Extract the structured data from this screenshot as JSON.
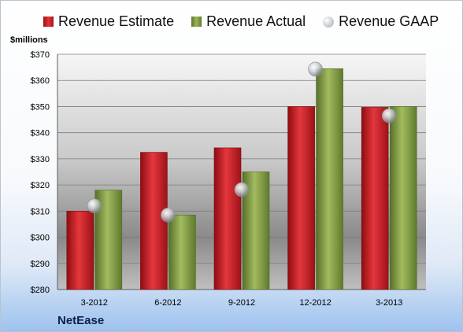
{
  "chart_data": {
    "type": "bar",
    "ylabel": "$millions",
    "company": "NetEase",
    "categories": [
      "3-2012",
      "6-2012",
      "9-2012",
      "12-2012",
      "3-2013"
    ],
    "ylim": [
      280,
      370
    ],
    "yticks": [
      280,
      290,
      300,
      310,
      320,
      330,
      340,
      350,
      360,
      370
    ],
    "ytick_labels": [
      "$280",
      "$290",
      "$300",
      "$310",
      "$320",
      "$330",
      "$340",
      "$350",
      "$360",
      "$370"
    ],
    "legend_position": "top",
    "grid": true,
    "series": [
      {
        "name": "Revenue Estimate",
        "type": "bar",
        "color": "#d62027",
        "values": [
          310,
          332.5,
          334.2,
          350,
          349.7
        ]
      },
      {
        "name": "Revenue Actual",
        "type": "bar",
        "color": "#8aa24a",
        "values": [
          318,
          308.5,
          325,
          364.5,
          350
        ]
      },
      {
        "name": "Revenue GAAP",
        "type": "scatter",
        "color": "#b5b9bd",
        "values": [
          312,
          308.5,
          318.2,
          364.3,
          346.5
        ]
      }
    ]
  }
}
